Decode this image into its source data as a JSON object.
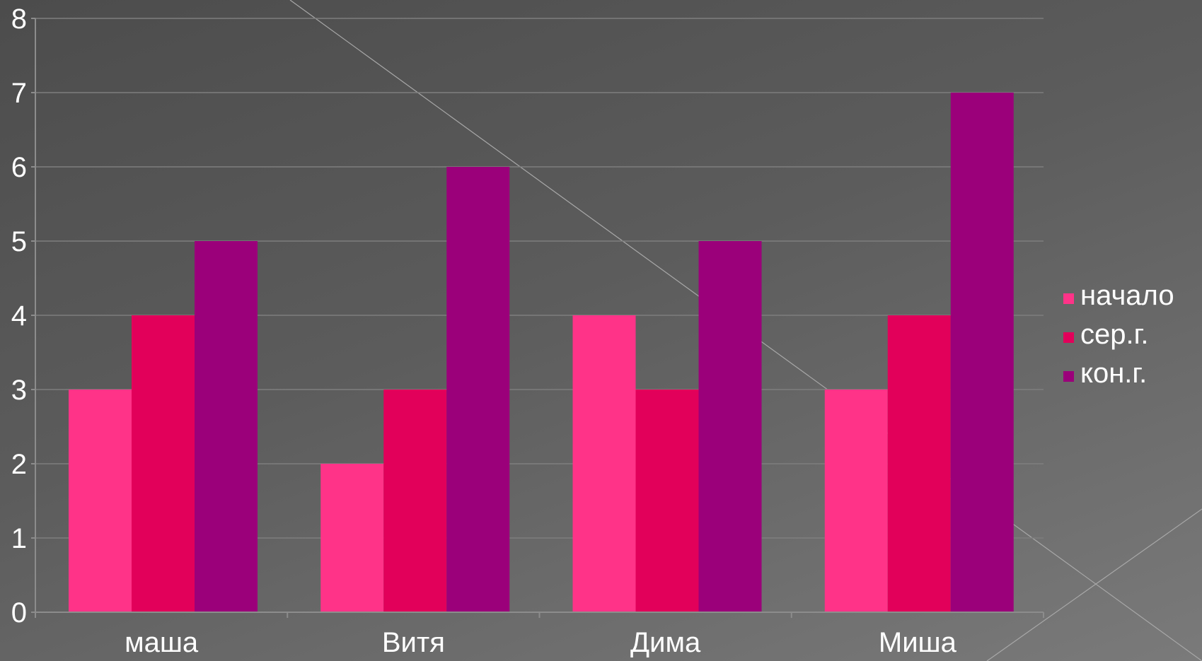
{
  "chart_data": {
    "type": "bar",
    "categories": [
      "маша",
      "Витя",
      "Дима",
      "Миша"
    ],
    "series": [
      {
        "name": "начало",
        "values": [
          3,
          2,
          4,
          3
        ],
        "color": "#ff3388"
      },
      {
        "name": "сер.г.",
        "values": [
          4,
          3,
          3,
          4
        ],
        "color": "#e2005a"
      },
      {
        "name": "кон.г.",
        "values": [
          5,
          6,
          5,
          7
        ],
        "color": "#9b007a"
      }
    ],
    "ylim": [
      0,
      8
    ],
    "yticks": [
      "0",
      "1",
      "2",
      "3",
      "4",
      "5",
      "6",
      "7",
      "8"
    ],
    "grid": true,
    "legend_position": "right",
    "colors": {
      "gridline": "#7e7e7e",
      "axis": "#8c8c8c",
      "text": "#ffffff"
    }
  }
}
